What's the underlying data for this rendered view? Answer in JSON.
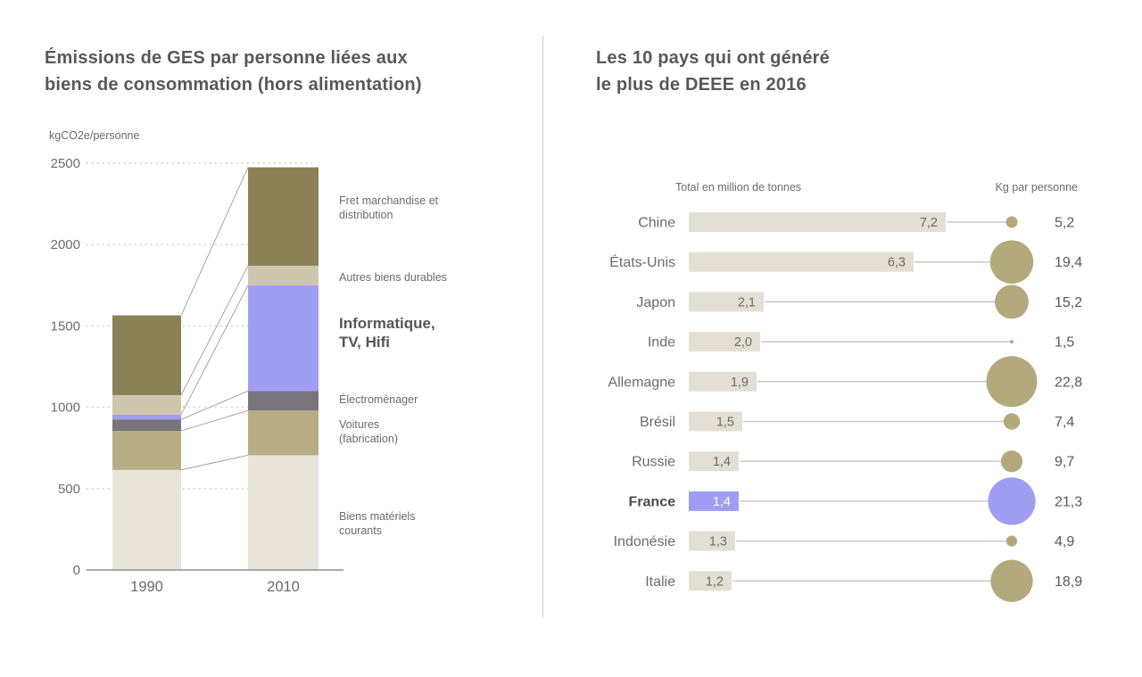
{
  "ui": {
    "left_title": "Émissions de GES par personne liées aux\nbiens de consommation (hors alimentation)",
    "left_unit_label": "kgCO2e/personne",
    "right_title": "Les 10 pays qui ont généré\nle plus de DEEE en 2016",
    "right_col1_header": "Total en million de tonnes",
    "right_col2_header": "Kg par personne",
    "left_legend": [
      {
        "text": "Fret marchandise et\ndistribution",
        "bold": false
      },
      {
        "text": "Autres biens durables",
        "bold": false
      },
      {
        "text": "Informatique,\nTV, Hifi",
        "bold": true
      },
      {
        "text": "Électroménager",
        "bold": false
      },
      {
        "text": "Voitures\n(fabrication)",
        "bold": false
      },
      {
        "text": "Biens matériels\ncourants",
        "bold": false
      }
    ],
    "colors": {
      "accent_purple": "#9f9ef2",
      "bubble_khaki": "#b3a97d",
      "bar_background": "#e3dfd4",
      "title_gray": "#58585a",
      "text_gray": "#6b6b6b",
      "axis_gray": "#8e8e8e",
      "grid_dot_gray": "#c4c4c4",
      "connector_gray": "#c9c9c9"
    }
  },
  "chart_data": [
    {
      "type": "bar",
      "stacked": true,
      "title": "Émissions de GES par personne liées aux biens de consommation (hors alimentation)",
      "ylabel": "kgCO2e/personne",
      "xlabel": "",
      "categories": [
        "1990",
        "2010"
      ],
      "series": [
        {
          "name": "Biens matériels courants",
          "values": [
            615,
            705
          ],
          "color": "#e8e4da"
        },
        {
          "name": "Voitures (fabrication)",
          "values": [
            240,
            275
          ],
          "color": "#b7ae86"
        },
        {
          "name": "Électroménager",
          "values": [
            70,
            120
          ],
          "color": "#77757b"
        },
        {
          "name": "Informatique, TV, Hifi",
          "values": [
            30,
            650
          ],
          "color": "#9f9ef2"
        },
        {
          "name": "Autres biens durables",
          "values": [
            120,
            120
          ],
          "color": "#cdc7ae"
        },
        {
          "name": "Fret marchandise et distribution",
          "values": [
            490,
            605
          ],
          "color": "#8b8157"
        }
      ],
      "totals": [
        1565,
        2475
      ],
      "ylim": [
        0,
        2500
      ],
      "yticks": [
        0,
        500,
        1000,
        1500,
        2000,
        2500
      ],
      "grid": "horizontal-dotted",
      "legend_position": "right",
      "annotations": "connector lines link each stacked segment boundary of 1990 to 2010"
    },
    {
      "type": "bar",
      "title": "Les 10 pays qui ont généré le plus de DEEE en 2016",
      "orientation": "horizontal",
      "categories": [
        "Chine",
        "États-Unis",
        "Japon",
        "Inde",
        "Allemagne",
        "Brésil",
        "Russie",
        "France",
        "Indonésie",
        "Italie"
      ],
      "series": [
        {
          "name": "Total en million de tonnes",
          "values": [
            7.2,
            6.3,
            2.1,
            2.0,
            1.9,
            1.5,
            1.4,
            1.4,
            1.3,
            1.2
          ]
        },
        {
          "name": "Kg par personne",
          "values": [
            5.2,
            19.4,
            15.2,
            1.5,
            22.8,
            7.4,
            9.7,
            21.3,
            4.9,
            18.9
          ]
        }
      ],
      "highlight": "France",
      "decimal_separator": ",",
      "legend_position": "top",
      "note": "second series drawn as proportional bubbles"
    }
  ]
}
